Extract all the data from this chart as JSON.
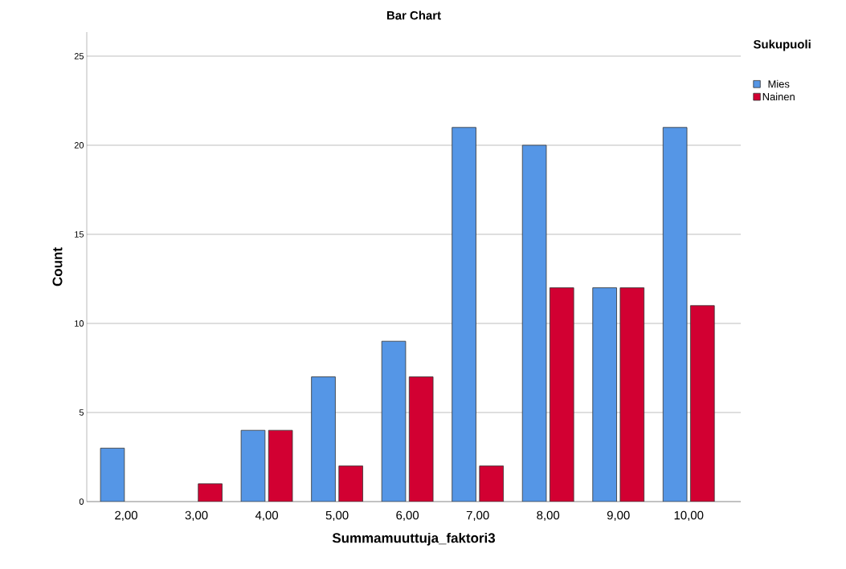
{
  "chart_data": {
    "type": "bar",
    "title": "Bar Chart",
    "xlabel": "Summamuuttuja_faktori3",
    "ylabel": "Count",
    "legend_title": "Sukupuoli",
    "categories": [
      "2,00",
      "3,00",
      "4,00",
      "5,00",
      "6,00",
      "7,00",
      "8,00",
      "9,00",
      "10,00"
    ],
    "series": [
      {
        "name": "Mies",
        "color": "#5596e6",
        "values": [
          3,
          null,
          4,
          7,
          9,
          21,
          20,
          12,
          21
        ]
      },
      {
        "name": "Nainen",
        "color": "#d20032",
        "values": [
          null,
          1,
          4,
          2,
          7,
          2,
          12,
          12,
          11
        ]
      }
    ],
    "ylim": [
      0,
      26.35
    ],
    "yticks": [
      0,
      5,
      10,
      15,
      20,
      25
    ],
    "grid": "y",
    "legend": "top right"
  }
}
